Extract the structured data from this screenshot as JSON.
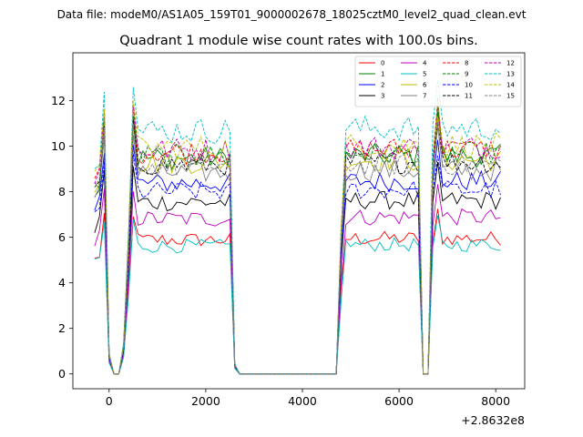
{
  "suptitle": "Data file: modeM0/AS1A05_159T01_9000002678_18025cztM0_level2_quad_clean.evt",
  "chart_data": {
    "type": "line",
    "title": "Quadrant 1 module wise count rates with 100.0s bins.",
    "xlabel": "",
    "ylabel": "",
    "x_offset_label": "+2.8632e8",
    "xlim": [
      -750,
      8600
    ],
    "ylim": [
      -0.65,
      14.1
    ],
    "xticks": [
      0,
      2000,
      4000,
      6000,
      8000
    ],
    "xtick_labels": [
      "0",
      "2000",
      "4000",
      "6000",
      "8000"
    ],
    "yticks": [
      0,
      2,
      4,
      6,
      8,
      10,
      12
    ],
    "ytick_labels": [
      "0",
      "2",
      "4",
      "6",
      "8",
      "10",
      "12"
    ],
    "legend_location": "upper-right",
    "legend_columns": 4,
    "time_bins": {
      "first_segment_start": -300,
      "active_windows": [
        [
          -300,
          2600
        ],
        [
          4700,
          6500
        ],
        [
          6700,
          8150
        ]
      ],
      "bin_width": 100
    },
    "series": [
      {
        "name": "0",
        "color": "#ff0000",
        "dash": "solid",
        "level": 6.4
      },
      {
        "name": "1",
        "color": "#008000",
        "dash": "solid",
        "level": 10.3
      },
      {
        "name": "2",
        "color": "#0000ff",
        "dash": "solid",
        "level": 9.1
      },
      {
        "name": "3",
        "color": "#000000",
        "dash": "solid",
        "level": 8.2
      },
      {
        "name": "4",
        "color": "#bf00bf",
        "dash": "solid",
        "level": 7.4
      },
      {
        "name": "5",
        "color": "#00bfbf",
        "dash": "solid",
        "level": 6.1
      },
      {
        "name": "6",
        "color": "#bfbf00",
        "dash": "solid",
        "level": 10.1
      },
      {
        "name": "7",
        "color": "#808080",
        "dash": "solid",
        "level": 9.6
      },
      {
        "name": "8",
        "color": "#ff0000",
        "dash": "dashed",
        "level": 10.6
      },
      {
        "name": "9",
        "color": "#008000",
        "dash": "dashed",
        "level": 10.4
      },
      {
        "name": "10",
        "color": "#0000ff",
        "dash": "dashed",
        "level": 8.7
      },
      {
        "name": "11",
        "color": "#000000",
        "dash": "dashed",
        "level": 10.0
      },
      {
        "name": "12",
        "color": "#bf00bf",
        "dash": "dashed",
        "level": 10.7
      },
      {
        "name": "13",
        "color": "#00bfbf",
        "dash": "dashed",
        "level": 11.6
      },
      {
        "name": "14",
        "color": "#bfbf00",
        "dash": "dashed",
        "level": 10.8
      },
      {
        "name": "15",
        "color": "#808080",
        "dash": "dashed",
        "level": 9.9
      }
    ]
  }
}
